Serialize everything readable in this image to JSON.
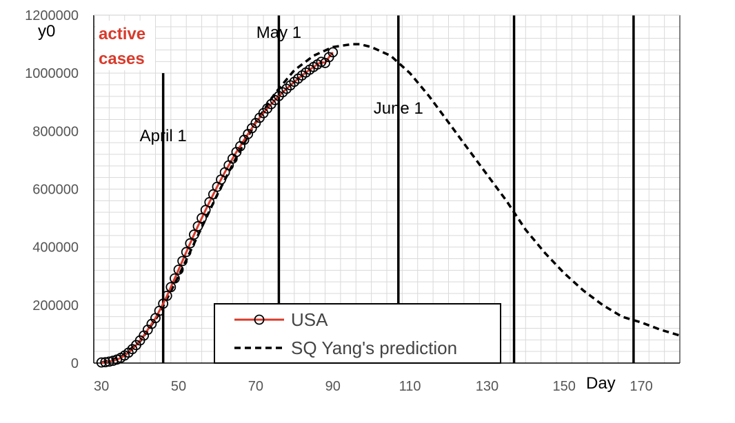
{
  "chart_data": {
    "type": "line",
    "title": "",
    "ylabel": "y0",
    "xlabel": "Day",
    "corner_label_line1": "active",
    "corner_label_line2": "cases",
    "xlim": [
      28,
      180
    ],
    "ylim": [
      0,
      1200000
    ],
    "x_ticks": [
      30,
      50,
      70,
      90,
      110,
      130,
      150,
      170
    ],
    "y_ticks": [
      0,
      200000,
      400000,
      600000,
      800000,
      1000000,
      1200000
    ],
    "grid": true,
    "legend_position": "bottom-center",
    "colors": {
      "usa": "#d93a2b",
      "marker": "#000000",
      "prediction": "#000000",
      "grid": "#d9d9d9",
      "red_label": "#d93a2b"
    },
    "vlines": [
      {
        "x": 46,
        "label": "April 1"
      },
      {
        "x": 76,
        "label": "May 1"
      },
      {
        "x": 107,
        "label": "June 1"
      },
      {
        "x": 137,
        "label": ""
      },
      {
        "x": 168,
        "label": ""
      }
    ],
    "series": [
      {
        "name": "USA",
        "style": "solid-with-circles",
        "x": [
          30,
          31,
          32,
          33,
          34,
          35,
          36,
          37,
          38,
          39,
          40,
          41,
          42,
          43,
          44,
          45,
          46,
          47,
          48,
          49,
          50,
          51,
          52,
          53,
          54,
          55,
          56,
          57,
          58,
          59,
          60,
          61,
          62,
          63,
          64,
          65,
          66,
          67,
          68,
          69,
          70,
          71,
          72,
          73,
          74,
          75,
          76,
          77,
          78,
          79,
          80,
          81,
          82,
          83,
          84,
          85,
          86,
          87,
          88,
          89,
          90
        ],
        "y": [
          2000,
          3000,
          5000,
          8000,
          12000,
          18000,
          26000,
          36000,
          48000,
          62000,
          78000,
          95000,
          115000,
          135000,
          155000,
          180000,
          205000,
          232000,
          262000,
          292000,
          322000,
          352000,
          383000,
          413000,
          443000,
          472000,
          500000,
          528000,
          555000,
          582000,
          608000,
          633000,
          658000,
          682000,
          705000,
          728000,
          748000,
          770000,
          790000,
          810000,
          828000,
          846000,
          862000,
          878000,
          893000,
          907000,
          921000,
          934000,
          946000,
          958000,
          970000,
          981000,
          992000,
          1002000,
          1012000,
          1021000,
          1030000,
          1039000,
          1035000,
          1055000,
          1072000
        ]
      },
      {
        "name": "SQ Yang's prediction",
        "style": "dashed",
        "x": [
          30,
          35,
          40,
          45,
          50,
          55,
          60,
          65,
          70,
          75,
          80,
          85,
          90,
          95,
          97,
          100,
          105,
          110,
          115,
          120,
          125,
          130,
          135,
          140,
          145,
          150,
          155,
          160,
          165,
          170,
          175,
          180
        ],
        "y": [
          2000,
          20000,
          75000,
          170000,
          300000,
          440000,
          580000,
          710000,
          830000,
          930000,
          1010000,
          1060000,
          1090000,
          1100000,
          1100000,
          1090000,
          1060000,
          1000000,
          920000,
          830000,
          740000,
          650000,
          560000,
          460000,
          380000,
          310000,
          250000,
          200000,
          160000,
          140000,
          115000,
          95000
        ]
      }
    ]
  }
}
